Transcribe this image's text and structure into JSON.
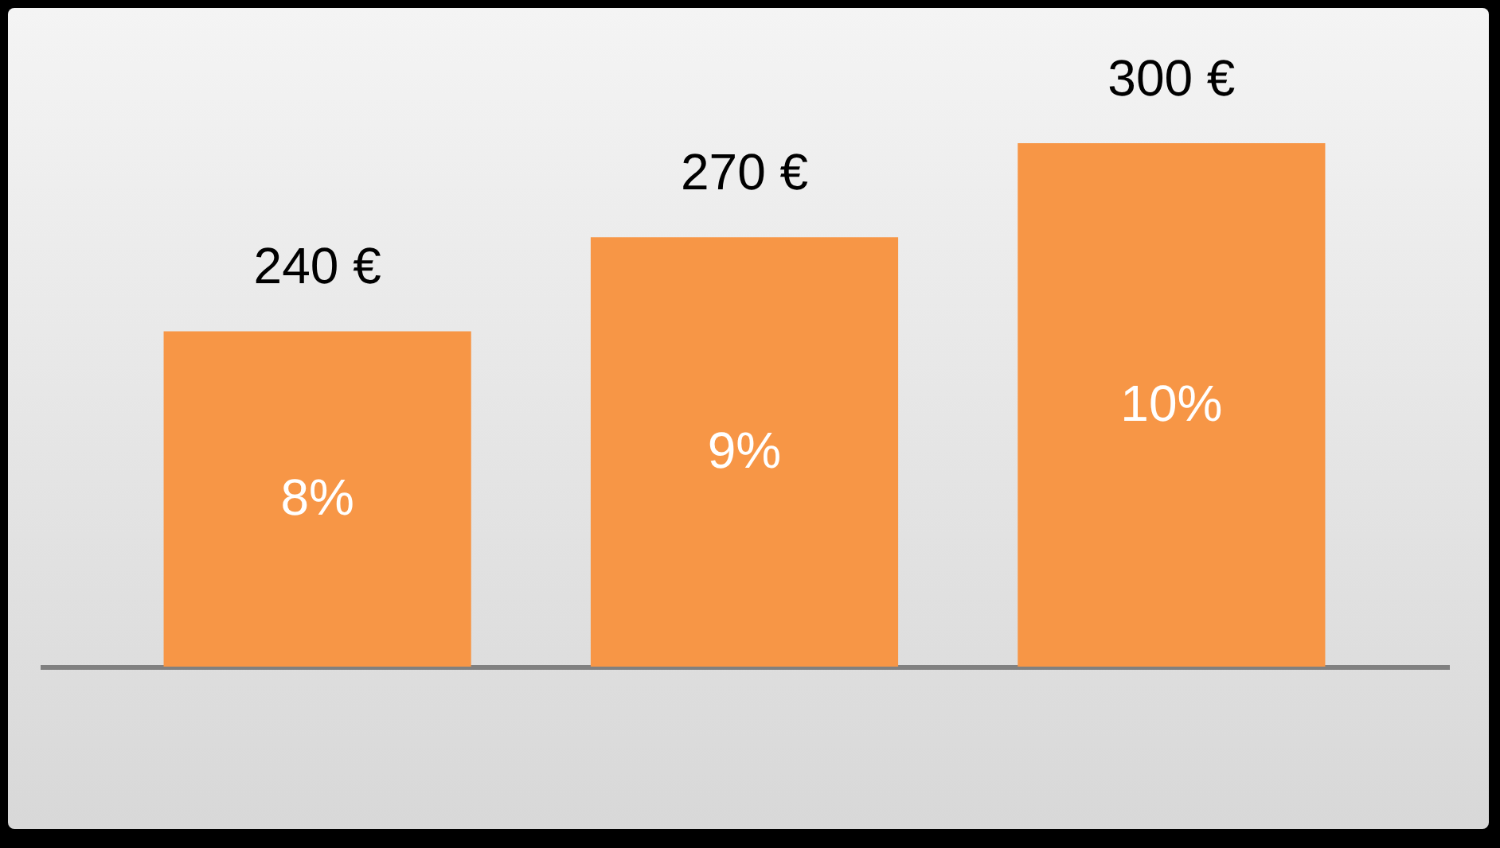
{
  "chart_data": {
    "type": "bar",
    "categories": [
      null,
      null,
      null
    ],
    "values": [
      240,
      270,
      300
    ],
    "color": "#f79646",
    "value_labels": [
      "240 €",
      "270 €",
      "300 €"
    ],
    "ylim": [
      133,
      300
    ],
    "annotations": [
      "8%",
      "9%",
      "10%"
    ]
  }
}
